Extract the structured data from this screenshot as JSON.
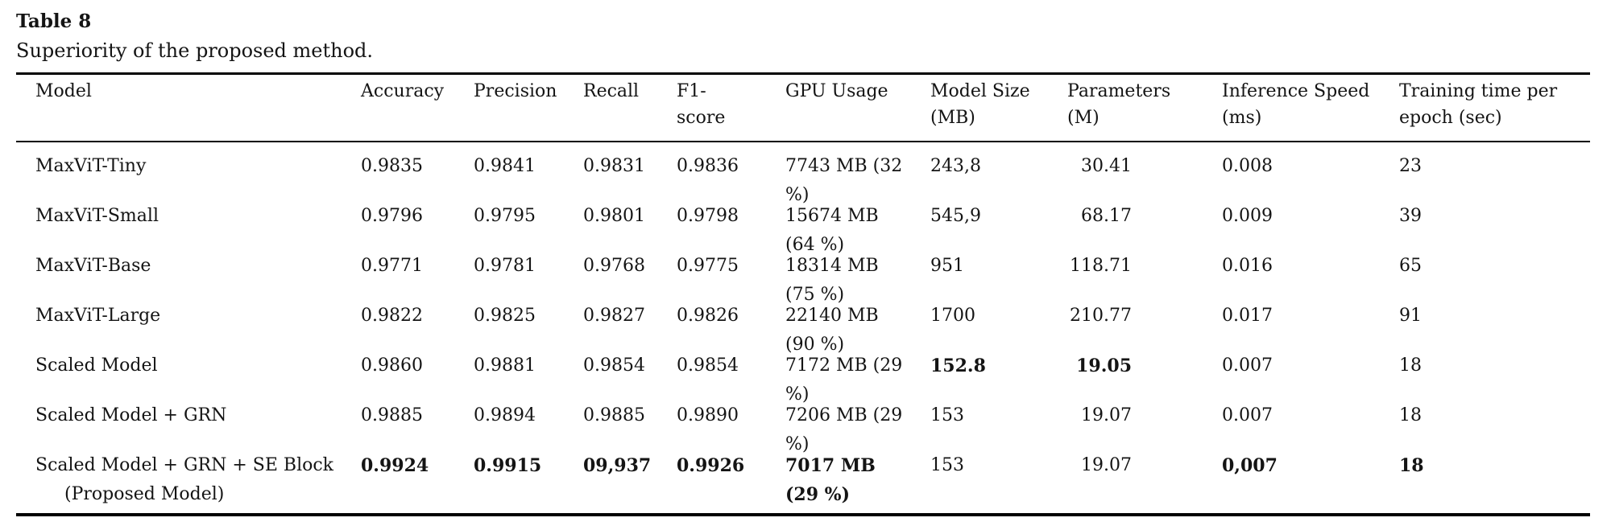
{
  "caption": {
    "label": "Table 8",
    "text": "Superiority of the proposed method."
  },
  "table": {
    "columns": [
      "Model",
      "Accuracy",
      "Precision",
      "Recall",
      "F1-\nscore",
      "GPU Usage",
      "Model Size\n(MB)",
      "Parameters\n(M)",
      "Inference Speed\n(ms)",
      "Training time per\nepoch (sec)"
    ],
    "rows": [
      {
        "cells": [
          {
            "text": "MaxViT-Tiny"
          },
          {
            "text": "0.9835"
          },
          {
            "text": "0.9841"
          },
          {
            "text": "0.9831"
          },
          {
            "text": "0.9836"
          },
          {
            "text": "7743 MB (32\n%)"
          },
          {
            "text": "243,8"
          },
          {
            "text": "30.41"
          },
          {
            "text": "0.008"
          },
          {
            "text": "23"
          }
        ]
      },
      {
        "cells": [
          {
            "text": "MaxViT-Small"
          },
          {
            "text": "0.9796"
          },
          {
            "text": "0.9795"
          },
          {
            "text": "0.9801"
          },
          {
            "text": "0.9798"
          },
          {
            "text": "15674 MB\n(64 %)"
          },
          {
            "text": "545,9"
          },
          {
            "text": "68.17"
          },
          {
            "text": "0.009"
          },
          {
            "text": "39"
          }
        ]
      },
      {
        "cells": [
          {
            "text": "MaxViT-Base"
          },
          {
            "text": "0.9771"
          },
          {
            "text": "0.9781"
          },
          {
            "text": "0.9768"
          },
          {
            "text": "0.9775"
          },
          {
            "text": "18314 MB\n(75 %)"
          },
          {
            "text": "951"
          },
          {
            "text": "118.71"
          },
          {
            "text": "0.016"
          },
          {
            "text": "65"
          }
        ]
      },
      {
        "cells": [
          {
            "text": "MaxViT-Large"
          },
          {
            "text": "0.9822"
          },
          {
            "text": "0.9825"
          },
          {
            "text": "0.9827"
          },
          {
            "text": "0.9826"
          },
          {
            "text": "22140 MB\n(90 %)"
          },
          {
            "text": "1700"
          },
          {
            "text": "210.77"
          },
          {
            "text": "0.017"
          },
          {
            "text": "91"
          }
        ]
      },
      {
        "cells": [
          {
            "text": "Scaled Model"
          },
          {
            "text": "0.9860"
          },
          {
            "text": "0.9881"
          },
          {
            "text": "0.9854"
          },
          {
            "text": "0.9854"
          },
          {
            "text": "7172 MB (29\n%)"
          },
          {
            "text": "152.8",
            "bold": true
          },
          {
            "text": "19.05",
            "bold": true
          },
          {
            "text": "0.007"
          },
          {
            "text": "18"
          }
        ]
      },
      {
        "cells": [
          {
            "text": "Scaled Model + GRN"
          },
          {
            "text": "0.9885"
          },
          {
            "text": "0.9894"
          },
          {
            "text": "0.9885"
          },
          {
            "text": "0.9890"
          },
          {
            "text": "7206 MB (29\n%)"
          },
          {
            "text": "153"
          },
          {
            "text": "19.07"
          },
          {
            "text": "0.007"
          },
          {
            "text": "18"
          }
        ]
      },
      {
        "cells": [
          {
            "text": "Scaled Model + GRN + SE Block\n(Proposed Model)"
          },
          {
            "text": "0.9924",
            "bold": true
          },
          {
            "text": "0.9915",
            "bold": true
          },
          {
            "text": "09,937",
            "bold": true
          },
          {
            "text": "0.9926",
            "bold": true
          },
          {
            "text": "7017 MB\n(29 %)",
            "bold": true
          },
          {
            "text": "153"
          },
          {
            "text": "19.07"
          },
          {
            "text": "0,007",
            "bold": true
          },
          {
            "text": "18",
            "bold": true
          }
        ]
      }
    ]
  },
  "colors": {
    "text": "#141414",
    "rule": "#000000",
    "background": "#ffffff"
  }
}
